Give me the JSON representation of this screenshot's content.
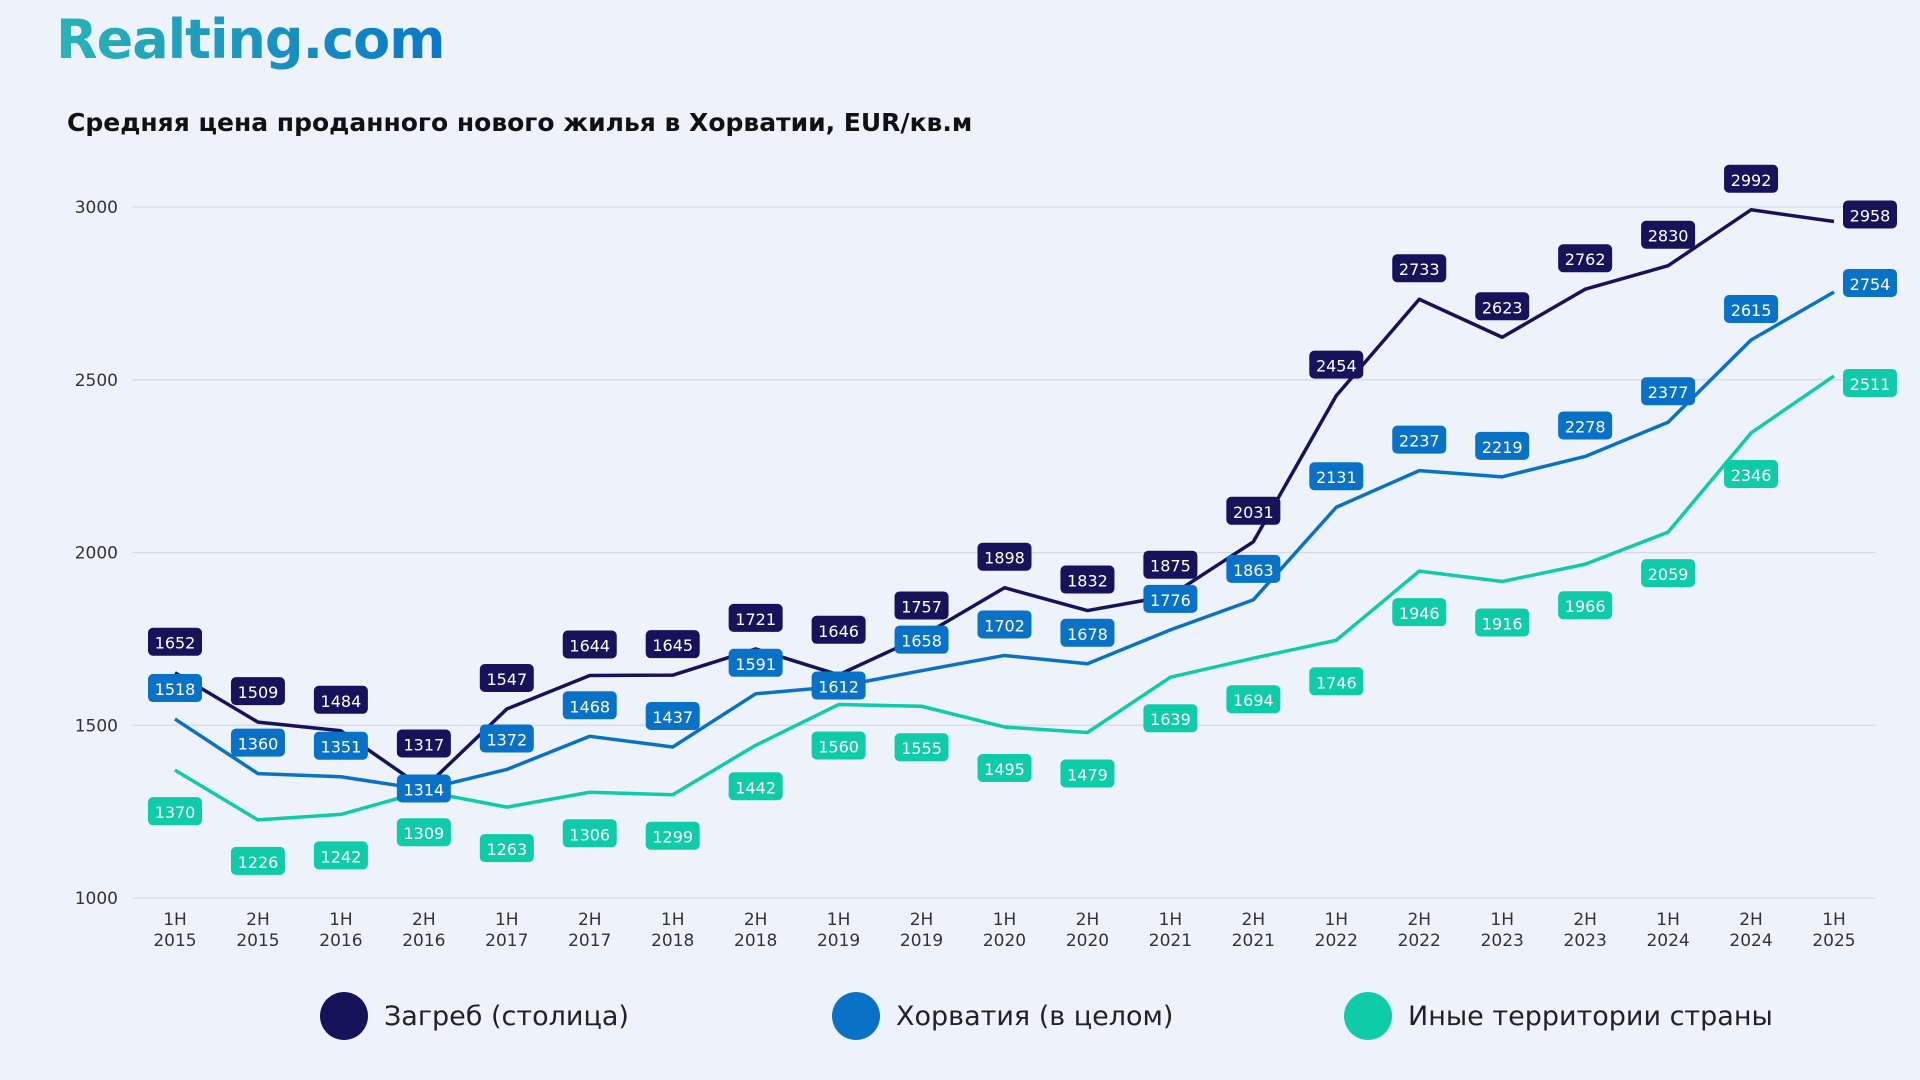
{
  "logo": "Realting.com",
  "chart_data": {
    "type": "line",
    "title": "Средняя цена проданного нового жилья в Хорватии, EUR/кв.м",
    "xlabel": "",
    "ylabel": "",
    "categories": [
      "1H 2015",
      "2H 2015",
      "1H 2016",
      "2H 2016",
      "1H 2017",
      "2H 2017",
      "1H 2018",
      "2H 2018",
      "1H 2019",
      "2H 2019",
      "1H 2020",
      "2H 2020",
      "1H 2021",
      "2H 2021",
      "1H 2022",
      "2H 2022",
      "1H 2023",
      "2H 2023",
      "1H 2024",
      "2H 2024",
      "1H 2025"
    ],
    "ylim": [
      1000,
      3000
    ],
    "yticks": [
      1000,
      1500,
      2000,
      2500,
      3000
    ],
    "grid": true,
    "legend_position": "bottom",
    "series": [
      {
        "name": "Загреб (столица)",
        "color": "#15145a",
        "values": [
          1652,
          1509,
          1484,
          1317,
          1547,
          1644,
          1645,
          1721,
          1646,
          1757,
          1898,
          1832,
          1875,
          2031,
          2454,
          2733,
          2623,
          2762,
          2830,
          2992,
          2958
        ]
      },
      {
        "name": "Хорватия (в целом)",
        "color": "#0a72c6",
        "values": [
          1518,
          1360,
          1351,
          1314,
          1372,
          1468,
          1437,
          1591,
          1612,
          1658,
          1702,
          1678,
          1776,
          1863,
          2131,
          2237,
          2219,
          2278,
          2377,
          2615,
          2754
        ]
      },
      {
        "name": "Иные территории страны",
        "color": "#10cba7",
        "values": [
          1370,
          1226,
          1242,
          1309,
          1263,
          1306,
          1299,
          1442,
          1560,
          1555,
          1495,
          1479,
          1639,
          1694,
          1746,
          1946,
          1916,
          1966,
          2059,
          2346,
          2511
        ]
      }
    ]
  }
}
